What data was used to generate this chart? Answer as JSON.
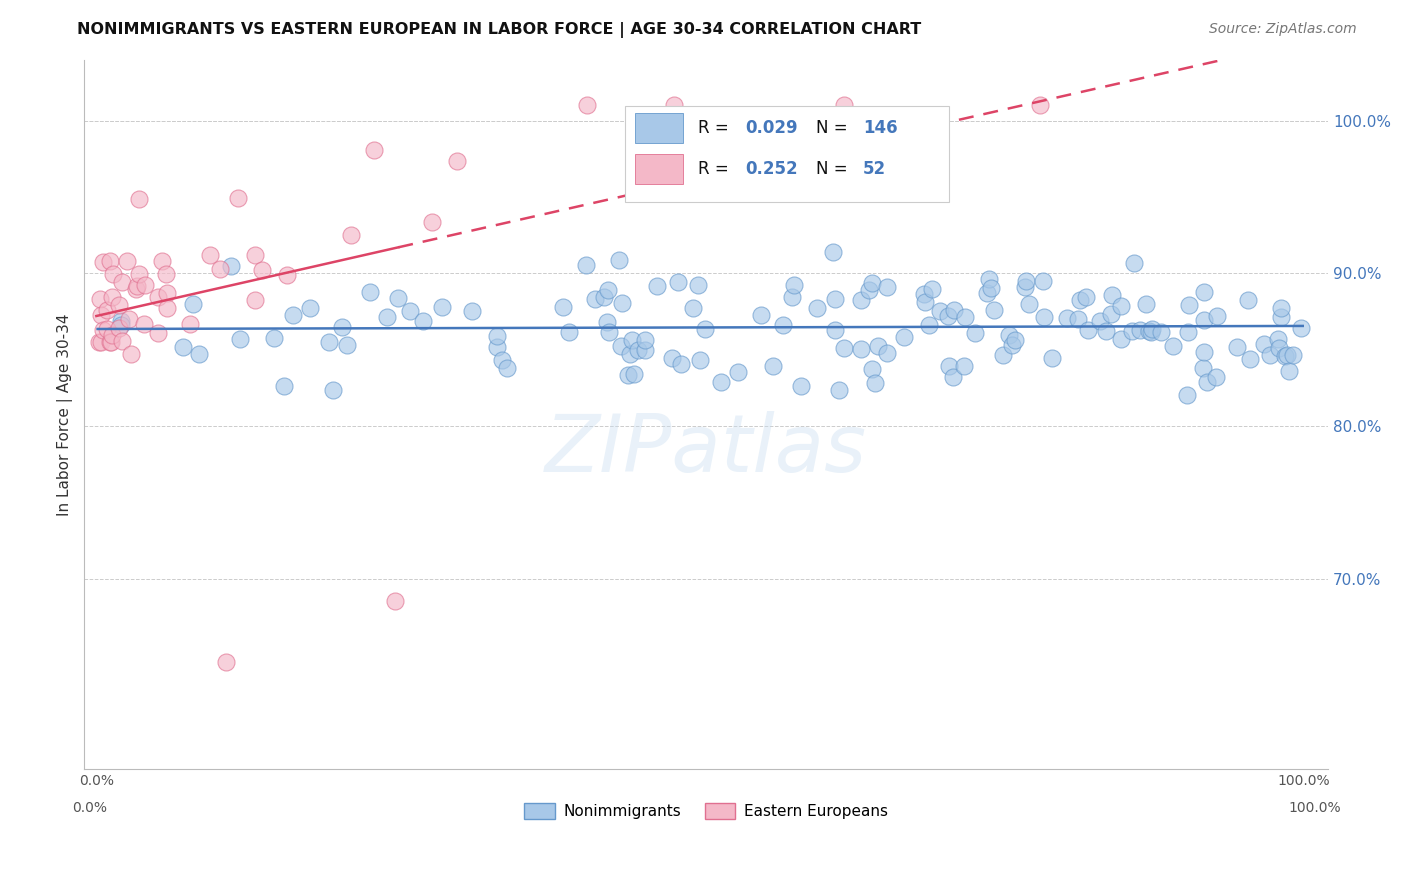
{
  "title": "NONIMMIGRANTS VS EASTERN EUROPEAN IN LABOR FORCE | AGE 30-34 CORRELATION CHART",
  "source": "Source: ZipAtlas.com",
  "ylabel": "In Labor Force | Age 30-34",
  "blue_scatter_color": "#a8c8e8",
  "blue_scatter_edge": "#6699cc",
  "pink_scatter_color": "#f4b8c8",
  "pink_scatter_edge": "#e07090",
  "blue_line_color": "#4477bb",
  "pink_line_color": "#dd4466",
  "watermark_color": "#ddeeff",
  "right_axis_color": "#4477bb",
  "legend_R_color": "#4477bb",
  "legend_N_color": "#4477bb",
  "bottom_legend_blue": "#a8c8e8",
  "bottom_legend_pink": "#f4b8c8"
}
